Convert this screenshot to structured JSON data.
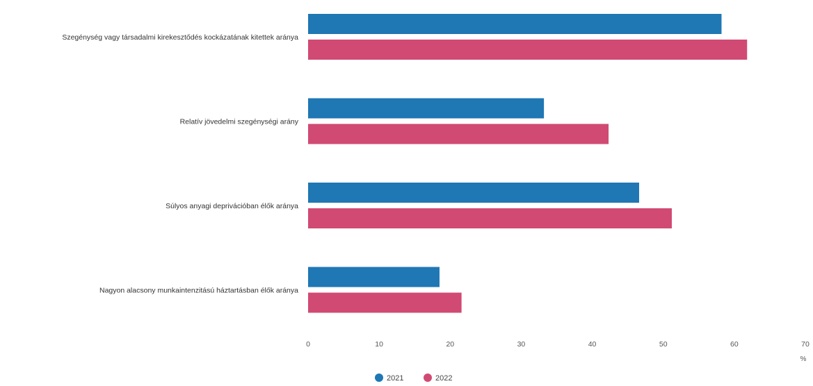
{
  "chart_data": {
    "type": "bar",
    "orientation": "horizontal",
    "categories": [
      "Szegénység vagy társadalmi kirekesztődés kockázatának kitettek aránya",
      "Relatív jövedelmi szegénységi arány",
      "Súlyos anyagi deprivációban élők aránya",
      "Nagyon alacsony munkaintenzitású háztartásban élők aránya"
    ],
    "series": [
      {
        "name": "2021",
        "color": "#1f77b4",
        "values": [
          58.2,
          33.2,
          46.6,
          18.5
        ]
      },
      {
        "name": "2022",
        "color": "#d14a73",
        "values": [
          61.8,
          42.3,
          51.2,
          21.6
        ]
      }
    ],
    "xlim": [
      0,
      70
    ],
    "xticks": [
      "0",
      "10",
      "20",
      "30",
      "40",
      "50",
      "60",
      "70"
    ],
    "xunit": "%",
    "legend_position": "bottom-center",
    "grid": false
  }
}
